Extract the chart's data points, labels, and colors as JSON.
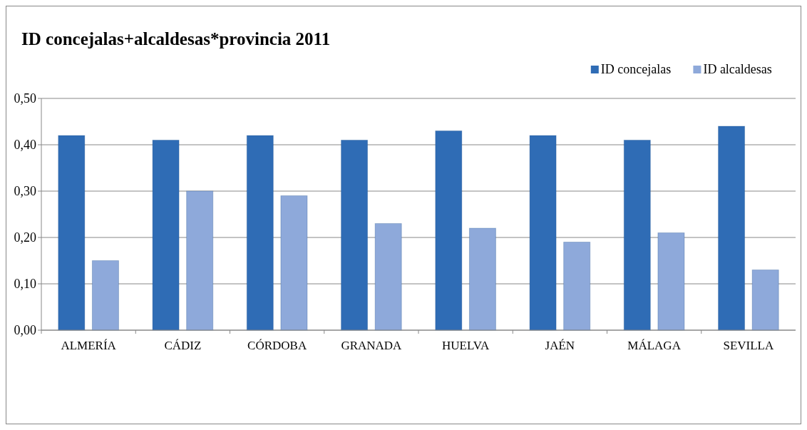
{
  "chart_data": {
    "type": "bar",
    "title": "ID concejalas+alcaldesas*provincia 2011",
    "categories": [
      "ALMERÍA",
      "CÁDIZ",
      "CÓRDOBA",
      "GRANADA",
      "HUELVA",
      "JAÉN",
      "MÁLAGA",
      "SEVILLA"
    ],
    "series": [
      {
        "name": "ID concejalas",
        "color": "#2f6cb5",
        "values": [
          0.42,
          0.41,
          0.42,
          0.41,
          0.43,
          0.42,
          0.41,
          0.44
        ]
      },
      {
        "name": "ID alcaldesas",
        "color": "#8ea9da",
        "values": [
          0.15,
          0.3,
          0.29,
          0.23,
          0.22,
          0.19,
          0.21,
          0.13
        ]
      }
    ],
    "ylim": [
      0,
      0.5
    ],
    "yticks": [
      {
        "value": 0,
        "label": "0,00"
      },
      {
        "value": 0.1,
        "label": "0,10"
      },
      {
        "value": 0.2,
        "label": "0,20"
      },
      {
        "value": 0.3,
        "label": "0,30"
      },
      {
        "value": 0.4,
        "label": "0,40"
      },
      {
        "value": 0.5,
        "label": "0,50"
      }
    ],
    "grid": "y",
    "legend": "top right"
  }
}
